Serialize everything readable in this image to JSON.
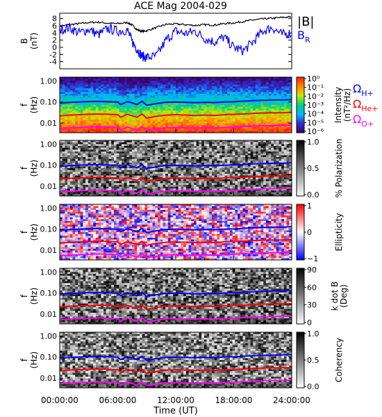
{
  "title": "ACE Mag 2004-029",
  "colors": {
    "B_total": "#000000",
    "B_R": "#0000ff",
    "H_plus": "#0000ff",
    "He_plus": "#ff0000",
    "O_plus": "#ff00ff"
  },
  "chart_data": [
    {
      "type": "line",
      "panel": "magnetic-field",
      "ylabel_top": "B",
      "ylabel_bottom": "(nT)",
      "yticks": [
        -4,
        -2,
        0,
        2,
        4,
        6,
        8
      ],
      "ylim": [
        -6,
        9.5
      ],
      "xlim": [
        0,
        24
      ],
      "legend": {
        "total": "|B|",
        "radial": "B",
        "radial_sub": "R"
      },
      "series": [
        {
          "key": "B_total",
          "x": [
            0,
            1,
            2,
            3,
            4,
            5,
            6,
            7,
            7.5,
            8,
            8.5,
            9,
            10,
            11,
            12,
            13,
            14,
            15,
            16,
            17,
            18,
            19,
            20,
            21,
            22,
            23,
            24
          ],
          "values": [
            5.8,
            6.3,
            6.6,
            6.9,
            7.0,
            6.7,
            6.6,
            6.9,
            6.2,
            4.9,
            4.4,
            4.6,
            5.5,
            6.4,
            6.5,
            6.3,
            6.1,
            6.3,
            6.2,
            6.6,
            6.8,
            7.2,
            7.6,
            7.9,
            8.1,
            8.3,
            8.5
          ]
        },
        {
          "key": "B_R",
          "x": [
            0,
            1,
            2,
            3,
            4,
            5,
            6,
            7,
            7.5,
            8,
            8.5,
            9,
            10,
            11,
            12,
            13,
            14,
            15,
            16,
            17,
            18,
            19,
            20,
            21,
            22,
            23,
            24
          ],
          "values": [
            5.0,
            5.5,
            4.0,
            5.0,
            3.5,
            5.2,
            4.5,
            4.8,
            1.5,
            -0.5,
            -2.5,
            -2.8,
            -2.5,
            2.0,
            4.5,
            3.8,
            4.5,
            2.5,
            1.5,
            2.8,
            0.0,
            -1.0,
            1.5,
            4.5,
            5.5,
            3.5,
            4.0
          ]
        }
      ]
    },
    {
      "type": "heatmap",
      "panel": "power-spectrum",
      "ylabel_top": "f",
      "ylabel_bottom": "(Hz)",
      "yticks": [
        "1.00",
        "0.10",
        "0.01"
      ],
      "colorbar": {
        "label": "Intensity",
        "unit": "(nT²/Hz)",
        "ticks": [
          "10⁰",
          "10⁻¹",
          "10⁻²",
          "10⁻³",
          "10⁻⁴",
          "10⁻⁵",
          "10⁻⁶"
        ]
      },
      "legend": [
        {
          "symbol": "Ω",
          "sub": "H+",
          "color": "#0000ff"
        },
        {
          "symbol": "Ω",
          "sub": "He+",
          "color": "#ff0000"
        },
        {
          "symbol": "Ω",
          "sub": "O+",
          "color": "#ff00ff"
        }
      ]
    },
    {
      "type": "heatmap",
      "panel": "polarization",
      "ylabel_top": "f",
      "ylabel_bottom": "(Hz)",
      "yticks": [
        "1.00",
        "0.10",
        "0.01"
      ],
      "colorbar": {
        "label": "% Polarization",
        "ticks": [
          "1.0",
          "0.5",
          "0.0"
        ],
        "scale": "gray"
      }
    },
    {
      "type": "heatmap",
      "panel": "ellipticity",
      "ylabel_top": "f",
      "ylabel_bottom": "(Hz)",
      "yticks": [
        "1.00",
        "0.10",
        "0.01"
      ],
      "colorbar": {
        "label": "Ellipticity",
        "ticks": [
          "1",
          "0",
          "−1"
        ],
        "scale": "blue-white-red"
      }
    },
    {
      "type": "heatmap",
      "panel": "k-dot-b",
      "ylabel_top": "f",
      "ylabel_bottom": "(Hz)",
      "yticks": [
        "1.00",
        "0.10",
        "0.01"
      ],
      "colorbar": {
        "label": "k dot B",
        "unit": "(Deg)",
        "ticks": [
          "90",
          "60",
          "30",
          "0"
        ],
        "scale": "gray"
      }
    },
    {
      "type": "heatmap",
      "panel": "coherency",
      "ylabel_top": "f",
      "ylabel_bottom": "(Hz)",
      "yticks": [
        "1.00",
        "0.10",
        "0.01"
      ],
      "colorbar": {
        "label": "Coherency",
        "ticks": [
          "1.0",
          "0.5",
          "0.0"
        ],
        "scale": "gray"
      }
    }
  ],
  "gyrofrequency_lines_hz": {
    "x": [
      0,
      1,
      2,
      3,
      4,
      5,
      6,
      6.3,
      7,
      7.5,
      8,
      8.5,
      9,
      10,
      11,
      12,
      13,
      14,
      15,
      16,
      17,
      18,
      19,
      20,
      21,
      22,
      23,
      24
    ],
    "H_plus": [
      0.088,
      0.095,
      0.1,
      0.105,
      0.107,
      0.103,
      0.1,
      0.075,
      0.105,
      0.09,
      0.075,
      0.11,
      0.07,
      0.084,
      0.097,
      0.099,
      0.096,
      0.093,
      0.096,
      0.094,
      0.1,
      0.103,
      0.11,
      0.115,
      0.12,
      0.124,
      0.126,
      0.13
    ],
    "He_plus": [
      0.022,
      0.024,
      0.025,
      0.026,
      0.027,
      0.026,
      0.025,
      0.019,
      0.026,
      0.022,
      0.019,
      0.027,
      0.017,
      0.021,
      0.024,
      0.025,
      0.024,
      0.023,
      0.024,
      0.023,
      0.025,
      0.026,
      0.027,
      0.029,
      0.03,
      0.031,
      0.031,
      0.032
    ],
    "O_plus": [
      0.0055,
      0.0059,
      0.0062,
      0.0065,
      0.0067,
      0.0064,
      0.0062,
      0.0047,
      0.0066,
      0.0056,
      0.0047,
      0.0069,
      0.0044,
      0.0052,
      0.0061,
      0.0062,
      0.006,
      0.0058,
      0.006,
      0.0059,
      0.0062,
      0.0064,
      0.0069,
      0.0072,
      0.0075,
      0.0077,
      0.0079,
      0.0081
    ]
  },
  "x_axis": {
    "label": "Time (UT)",
    "ticks": [
      "00:00:00",
      "06:00:00",
      "12:00:00",
      "18:00:00",
      "24:00:00"
    ],
    "xlim": [
      0,
      24
    ]
  }
}
